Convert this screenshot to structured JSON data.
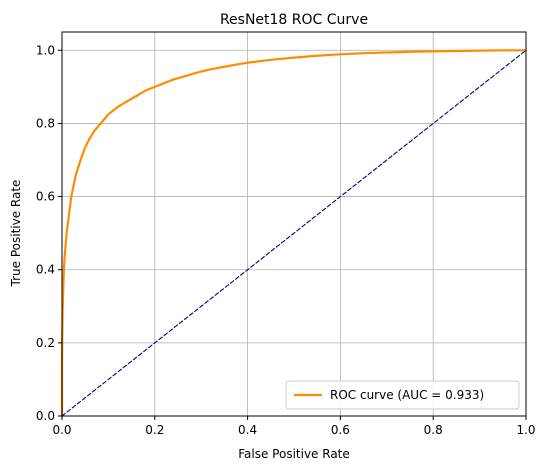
{
  "chart_data": {
    "type": "line",
    "title": "ResNet18 ROC Curve",
    "xlabel": "False Positive Rate",
    "ylabel": "True Positive Rate",
    "xlim": [
      0.0,
      1.0
    ],
    "ylim": [
      0.0,
      1.05
    ],
    "grid": true,
    "legend_position": "lower-right",
    "x_ticks": [
      "0.0",
      "0.2",
      "0.4",
      "0.6",
      "0.8",
      "1.0"
    ],
    "y_ticks": [
      "0.0",
      "0.2",
      "0.4",
      "0.6",
      "0.8",
      "1.0"
    ],
    "series": [
      {
        "name": "ROC curve (AUC = 0.933)",
        "color": "#ff8c00",
        "style": "solid",
        "x": [
          0.0,
          0.0,
          0.001,
          0.002,
          0.004,
          0.006,
          0.008,
          0.01,
          0.015,
          0.02,
          0.025,
          0.03,
          0.04,
          0.05,
          0.06,
          0.07,
          0.08,
          0.09,
          0.1,
          0.12,
          0.14,
          0.16,
          0.18,
          0.2,
          0.22,
          0.24,
          0.26,
          0.28,
          0.3,
          0.32,
          0.35,
          0.38,
          0.4,
          0.45,
          0.5,
          0.55,
          0.6,
          0.65,
          0.7,
          0.75,
          0.8,
          0.85,
          0.9,
          0.95,
          1.0
        ],
        "y": [
          0.0,
          0.15,
          0.25,
          0.32,
          0.4,
          0.44,
          0.47,
          0.5,
          0.55,
          0.6,
          0.63,
          0.66,
          0.7,
          0.735,
          0.76,
          0.78,
          0.795,
          0.81,
          0.825,
          0.845,
          0.86,
          0.875,
          0.89,
          0.9,
          0.91,
          0.92,
          0.927,
          0.935,
          0.942,
          0.948,
          0.955,
          0.962,
          0.966,
          0.974,
          0.98,
          0.985,
          0.989,
          0.992,
          0.994,
          0.996,
          0.997,
          0.998,
          0.999,
          1.0,
          1.0
        ]
      },
      {
        "name": "",
        "color": "#000080",
        "style": "dashed",
        "x": [
          0.0,
          1.0
        ],
        "y": [
          0.0,
          1.0
        ]
      }
    ],
    "legend": [
      {
        "label": "ROC curve (AUC = 0.933)",
        "color": "#ff8c00"
      }
    ]
  }
}
